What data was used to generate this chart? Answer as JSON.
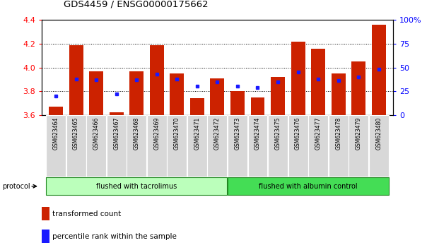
{
  "title": "GDS4459 / ENSG00000175662",
  "samples": [
    "GSM623464",
    "GSM623465",
    "GSM623466",
    "GSM623467",
    "GSM623468",
    "GSM623469",
    "GSM623470",
    "GSM623471",
    "GSM623472",
    "GSM623473",
    "GSM623474",
    "GSM623475",
    "GSM623476",
    "GSM623477",
    "GSM623478",
    "GSM623479",
    "GSM623480"
  ],
  "transformed_count": [
    3.67,
    4.19,
    3.97,
    3.62,
    3.97,
    4.19,
    3.95,
    3.74,
    3.91,
    3.8,
    3.75,
    3.92,
    4.22,
    4.16,
    3.95,
    4.05,
    4.36
  ],
  "percentile_rank": [
    20,
    38,
    37,
    22,
    37,
    43,
    38,
    30,
    35,
    30,
    29,
    35,
    45,
    38,
    36,
    40,
    48
  ],
  "ylim": [
    3.6,
    4.4
  ],
  "yticks": [
    3.6,
    3.8,
    4.0,
    4.2,
    4.4
  ],
  "right_yticks": [
    0,
    25,
    50,
    75,
    100
  ],
  "right_ylim": [
    0,
    100
  ],
  "bar_color": "#cc2200",
  "dot_color": "#1a1aff",
  "protocol_group1": "flushed with tacrolimus",
  "protocol_group2": "flushed with albumin control",
  "protocol_group1_count": 9,
  "protocol_group2_count": 8,
  "protocol_bg1": "#bbffbb",
  "protocol_bg2": "#44dd55",
  "legend_red": "transformed count",
  "legend_blue": "percentile rank within the sample",
  "bar_width": 0.7,
  "background_color": "#ffffff"
}
